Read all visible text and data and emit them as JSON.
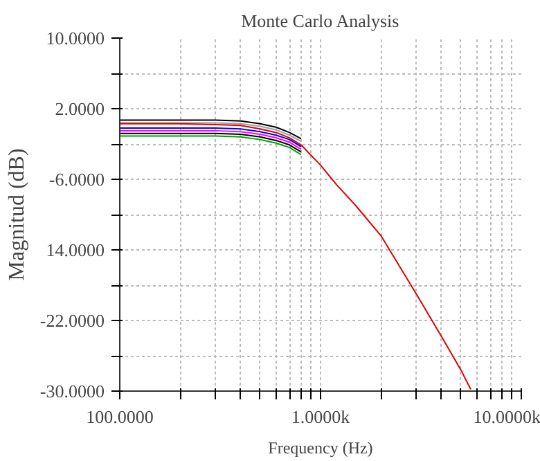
{
  "chart_data": {
    "type": "line",
    "title": "Monte Carlo Analysis",
    "xlabel": "Frequency (Hz)",
    "ylabel": "Magnitud (dB)",
    "log": "x",
    "grid": true,
    "marker": "none",
    "line_style": "solid",
    "x": [
      100,
      200,
      300,
      400,
      500,
      600,
      700,
      800
    ],
    "xlim": [
      100,
      10000
    ],
    "ylim": [
      -30,
      10
    ],
    "xticks": [
      {
        "value": 100,
        "label": "100.0000"
      },
      {
        "value": 200,
        "label": null
      },
      {
        "value": 300,
        "label": null
      },
      {
        "value": 400,
        "label": null
      },
      {
        "value": 500,
        "label": null
      },
      {
        "value": 600,
        "label": null
      },
      {
        "value": 700,
        "label": null
      },
      {
        "value": 800,
        "label": null
      },
      {
        "value": 900,
        "label": null
      },
      {
        "value": 1000,
        "label": "1.0000k"
      },
      {
        "value": 2000,
        "label": null
      },
      {
        "value": 3000,
        "label": null
      },
      {
        "value": 4000,
        "label": null
      },
      {
        "value": 5000,
        "label": null
      },
      {
        "value": 6000,
        "label": null
      },
      {
        "value": 7000,
        "label": null
      },
      {
        "value": 8000,
        "label": null
      },
      {
        "value": 9000,
        "label": null
      },
      {
        "value": 10000,
        "label": "10.0000k"
      }
    ],
    "yticks": [
      {
        "value": 10,
        "label": "10.0000"
      },
      {
        "value": 6,
        "label": null
      },
      {
        "value": 2,
        "label": "2.0000"
      },
      {
        "value": -2,
        "label": null
      },
      {
        "value": -6,
        "label": "-6.0000"
      },
      {
        "value": -10,
        "label": null
      },
      {
        "value": -14,
        "label": "14.0000"
      },
      {
        "value": -18,
        "label": null
      },
      {
        "value": -22,
        "label": "-22.0000"
      },
      {
        "value": -26,
        "label": null
      },
      {
        "value": -30,
        "label": "-30.0000"
      }
    ],
    "series": [
      {
        "color": "#000000",
        "values": [
          0.7,
          0.7,
          0.7,
          0.6,
          0.3,
          -0.1,
          -0.7,
          -1.4
        ]
      },
      {
        "color": "#a0a0a0",
        "values": [
          0.4,
          0.4,
          0.4,
          0.3,
          0.0,
          -0.4,
          -1.0,
          -1.7
        ]
      },
      {
        "color": "#0000ff",
        "values": [
          -0.2,
          -0.2,
          -0.2,
          -0.3,
          -0.6,
          -1.0,
          -1.5,
          -2.3
        ]
      },
      {
        "color": "#ff00ff",
        "values": [
          -0.5,
          -0.5,
          -0.5,
          -0.6,
          -0.9,
          -1.3,
          -1.8,
          -2.6
        ]
      },
      {
        "color": "#000000",
        "values": [
          -0.8,
          -0.8,
          -0.8,
          -0.9,
          -1.2,
          -1.6,
          -2.1,
          -2.9
        ]
      },
      {
        "color": "#00a000",
        "values": [
          -1.1,
          -1.1,
          -1.1,
          -1.2,
          -1.5,
          -1.9,
          -2.4,
          -3.2
        ]
      },
      {
        "color": "#e00000",
        "x": [
          100,
          200,
          300,
          400,
          500,
          600,
          700,
          800,
          1000,
          1200,
          1500,
          2000,
          3000,
          4000,
          5000,
          5600
        ],
        "values": [
          0.3,
          0.3,
          0.2,
          0.1,
          -0.3,
          -0.7,
          -1.3,
          -2.1,
          -4.4,
          -6.6,
          -9.0,
          -12.4,
          -19.0,
          -23.8,
          -27.6,
          -29.8
        ]
      }
    ]
  }
}
